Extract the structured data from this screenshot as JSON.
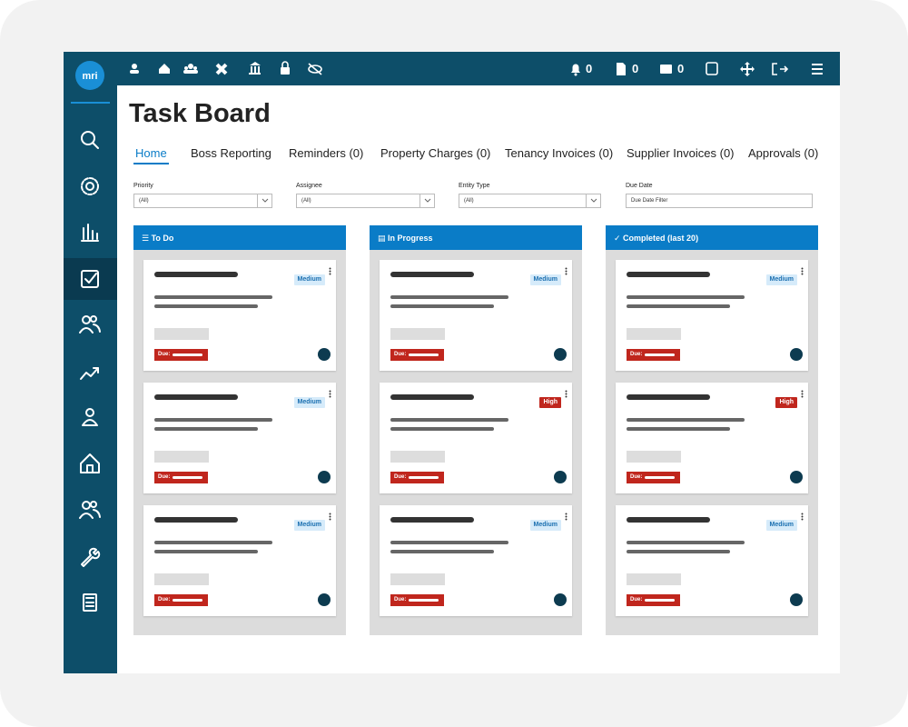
{
  "logo": "mri",
  "topbar": {
    "notifications": 0,
    "documents": 0,
    "messages": 0
  },
  "title": "Task Board",
  "tabs": [
    "Home",
    "Boss Reporting",
    "Reminders (0)",
    "Property Charges (0)",
    "Tenancy Invoices (0)",
    "Supplier Invoices (0)",
    "Approvals (0)"
  ],
  "filters": [
    {
      "label": "Priority",
      "value": "(All)"
    },
    {
      "label": "Assignee",
      "value": "(All)"
    },
    {
      "label": "Entity Type",
      "value": "(All)"
    },
    {
      "label": "Due Date",
      "placeholder": "Due Date Filter"
    }
  ],
  "columns": [
    {
      "title": "To Do",
      "cards": [
        {
          "priority": "Medium",
          "due": "Due:"
        },
        {
          "priority": "Medium",
          "due": "Due:"
        },
        {
          "priority": "Medium",
          "due": "Due:"
        }
      ]
    },
    {
      "title": "In Progress",
      "cards": [
        {
          "priority": "Medium",
          "due": "Due:"
        },
        {
          "priority": "High",
          "due": "Due:"
        },
        {
          "priority": "Medium",
          "due": "Due:"
        }
      ]
    },
    {
      "title": "Completed (last 20)",
      "cards": [
        {
          "priority": "Medium",
          "due": "Due:"
        },
        {
          "priority": "High",
          "due": "Due:"
        },
        {
          "priority": "Medium",
          "due": "Due:"
        }
      ]
    }
  ]
}
